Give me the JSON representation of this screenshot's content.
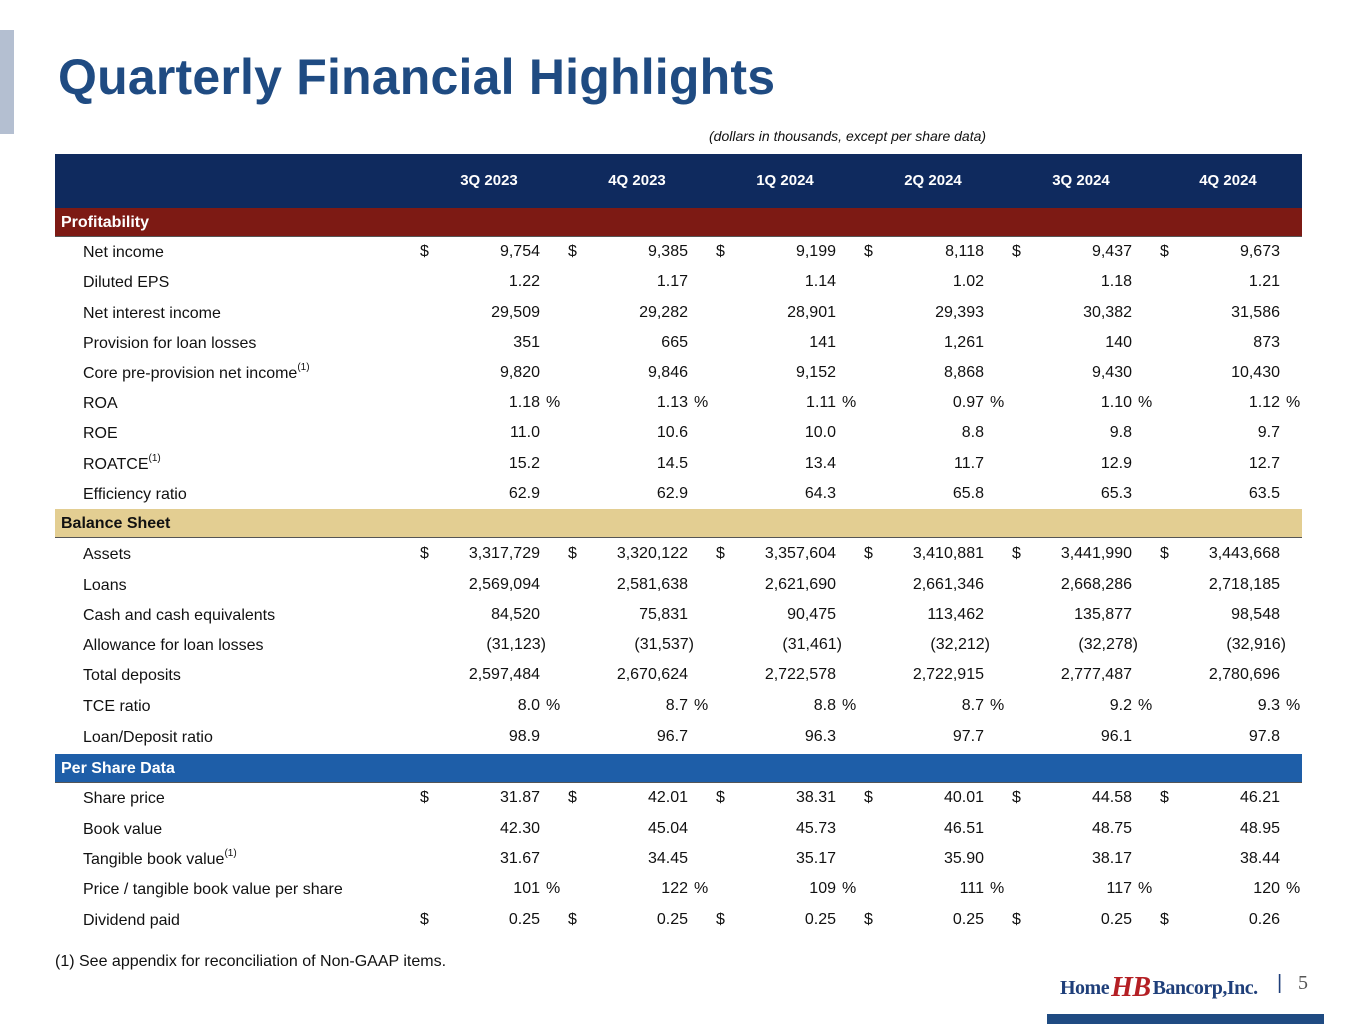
{
  "title": "Quarterly Financial Highlights",
  "subtitle": "(dollars in thousands, except per share data)",
  "columns": [
    "3Q 2023",
    "4Q 2023",
    "1Q 2024",
    "2Q 2024",
    "3Q 2024",
    "4Q 2024"
  ],
  "sections": [
    {
      "name": "Profitability",
      "rows": [
        {
          "label": "Net income",
          "sup": "",
          "dollar": true,
          "pct": false,
          "values": [
            "9,754",
            "9,385",
            "9,199",
            "8,118",
            "9,437",
            "9,673"
          ]
        },
        {
          "label": "Diluted EPS",
          "sup": "",
          "dollar": false,
          "pct": false,
          "values": [
            "1.22",
            "1.17",
            "1.14",
            "1.02",
            "1.18",
            "1.21"
          ]
        },
        {
          "label": "Net interest income",
          "sup": "",
          "dollar": false,
          "pct": false,
          "values": [
            "29,509",
            "29,282",
            "28,901",
            "29,393",
            "30,382",
            "31,586"
          ]
        },
        {
          "label": "Provision for loan losses",
          "sup": "",
          "dollar": false,
          "pct": false,
          "values": [
            "351",
            "665",
            "141",
            "1,261",
            "140",
            "873"
          ]
        },
        {
          "label": "Core pre-provision net income",
          "sup": "(1)",
          "dollar": false,
          "pct": false,
          "values": [
            "9,820",
            "9,846",
            "9,152",
            "8,868",
            "9,430",
            "10,430"
          ]
        },
        {
          "label": "ROA",
          "sup": "",
          "dollar": false,
          "pct": true,
          "values": [
            "1.18",
            "1.13",
            "1.11",
            "0.97",
            "1.10",
            "1.12"
          ]
        },
        {
          "label": "ROE",
          "sup": "",
          "dollar": false,
          "pct": false,
          "values": [
            "11.0",
            "10.6",
            "10.0",
            "8.8",
            "9.8",
            "9.7"
          ]
        },
        {
          "label": "ROATCE",
          "sup": "(1)",
          "dollar": false,
          "pct": false,
          "values": [
            "15.2",
            "14.5",
            "13.4",
            "11.7",
            "12.9",
            "12.7"
          ]
        },
        {
          "label": "Efficiency ratio",
          "sup": "",
          "dollar": false,
          "pct": false,
          "values": [
            "62.9",
            "62.9",
            "64.3",
            "65.8",
            "65.3",
            "63.5"
          ]
        }
      ]
    },
    {
      "name": "Balance Sheet",
      "rows": [
        {
          "label": "Assets",
          "sup": "",
          "dollar": true,
          "pct": false,
          "values": [
            "3,317,729",
            "3,320,122",
            "3,357,604",
            "3,410,881",
            "3,441,990",
            "3,443,668"
          ]
        },
        {
          "label": "Loans",
          "sup": "",
          "dollar": false,
          "pct": false,
          "values": [
            "2,569,094",
            "2,581,638",
            "2,621,690",
            "2,661,346",
            "2,668,286",
            "2,718,185"
          ]
        },
        {
          "label": "Cash and cash equivalents",
          "sup": "",
          "dollar": false,
          "pct": false,
          "values": [
            "84,520",
            "75,831",
            "90,475",
            "113,462",
            "135,877",
            "98,548"
          ]
        },
        {
          "label": "Allowance for loan losses",
          "sup": "",
          "dollar": false,
          "pct": false,
          "values": [
            "(31,123)",
            "(31,537)",
            "(31,461)",
            "(32,212)",
            "(32,278)",
            "(32,916)"
          ]
        },
        {
          "label": "Total deposits",
          "sup": "",
          "dollar": false,
          "pct": false,
          "values": [
            "2,597,484",
            "2,670,624",
            "2,722,578",
            "2,722,915",
            "2,777,487",
            "2,780,696"
          ]
        },
        {
          "label": "TCE ratio",
          "sup": "",
          "dollar": false,
          "pct": true,
          "values": [
            "8.0",
            "8.7",
            "8.8",
            "8.7",
            "9.2",
            "9.3"
          ]
        },
        {
          "label": "Loan/Deposit ratio",
          "sup": "",
          "dollar": false,
          "pct": false,
          "values": [
            "98.9",
            "96.7",
            "96.3",
            "97.7",
            "96.1",
            "97.8"
          ]
        }
      ]
    },
    {
      "name": "Per Share Data",
      "rows": [
        {
          "label": "Share price",
          "sup": "",
          "dollar": true,
          "pct": false,
          "values": [
            "31.87",
            "42.01",
            "38.31",
            "40.01",
            "44.58",
            "46.21"
          ]
        },
        {
          "label": "Book value",
          "sup": "",
          "dollar": false,
          "pct": false,
          "values": [
            "42.30",
            "45.04",
            "45.73",
            "46.51",
            "48.75",
            "48.95"
          ]
        },
        {
          "label": "Tangible book value",
          "sup": "(1)",
          "dollar": false,
          "pct": false,
          "values": [
            "31.67",
            "34.45",
            "35.17",
            "35.90",
            "38.17",
            "38.44"
          ]
        },
        {
          "label": "Price / tangible book value per share",
          "sup": "",
          "dollar": false,
          "pct": true,
          "values": [
            "101",
            "122",
            "109",
            "111",
            "117",
            "120"
          ]
        },
        {
          "label": "Dividend paid",
          "sup": "",
          "dollar": true,
          "pct": false,
          "values": [
            "0.25",
            "0.25",
            "0.25",
            "0.25",
            "0.25",
            "0.26"
          ]
        }
      ]
    }
  ],
  "footnote": "(1)   See appendix for reconciliation of Non-GAAP items.",
  "logo": {
    "left": "Home",
    "mark": "HB",
    "right": "Bancorp,Inc."
  },
  "page_number": "5",
  "dollar_sign": "$",
  "percent_sign": "%"
}
